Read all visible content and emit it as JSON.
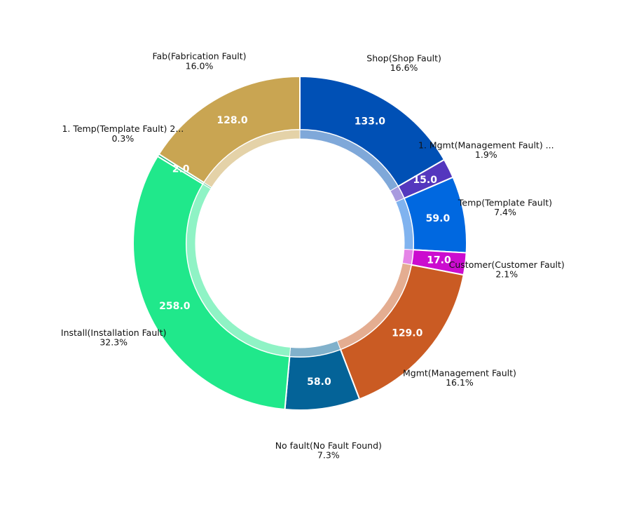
{
  "chart_data": {
    "type": "pie",
    "subtype": "donut",
    "title": "",
    "slices": [
      {
        "label": "Shop(Shop Fault)",
        "value": 133.0,
        "value_text": "133.0",
        "percent_text": "16.6%",
        "color": "#0050b5",
        "inner_color": "#7fa8d9"
      },
      {
        "label": "1. Mgmt(Management Fault)  ...",
        "value": 15.0,
        "value_text": "15.0",
        "percent_text": "1.9%",
        "color": "#5437be",
        "inner_color": "#a99bdf"
      },
      {
        "label": "Temp(Template Fault)",
        "value": 59.0,
        "value_text": "59.0",
        "percent_text": "7.4%",
        "color": "#0068e0",
        "inner_color": "#80b3ef"
      },
      {
        "label": "Customer(Customer Fault)",
        "value": 17.0,
        "value_text": "17.0",
        "percent_text": "2.1%",
        "color": "#cb0ccf",
        "inner_color": "#e585e7"
      },
      {
        "label": "Mgmt(Management Fault)",
        "value": 129.0,
        "value_text": "129.0",
        "percent_text": "16.1%",
        "color": "#ca5b23",
        "inner_color": "#e4ad91"
      },
      {
        "label": "No fault(No Fault Found)",
        "value": 58.0,
        "value_text": "58.0",
        "percent_text": "7.3%",
        "color": "#046398",
        "inner_color": "#81b1cb"
      },
      {
        "label": "Install(Installation Fault)",
        "value": 258.0,
        "value_text": "258.0",
        "percent_text": "32.3%",
        "color": "#20e88b",
        "inner_color": "#8ff3c5"
      },
      {
        "label": "1. Temp(Template Fault)   2...",
        "value": 2.0,
        "value_text": "2.0",
        "percent_text": "0.3%",
        "color": "#1bb878",
        "inner_color": "#8ddcbb"
      },
      {
        "label": "Fab(Fabrication Fault)",
        "value": 128.0,
        "value_text": "128.0",
        "percent_text": "16.0%",
        "color": "#c9a552",
        "inner_color": "#e4d2a8"
      }
    ],
    "start_angle_deg": 90,
    "direction": "clockwise",
    "legend": "none"
  }
}
